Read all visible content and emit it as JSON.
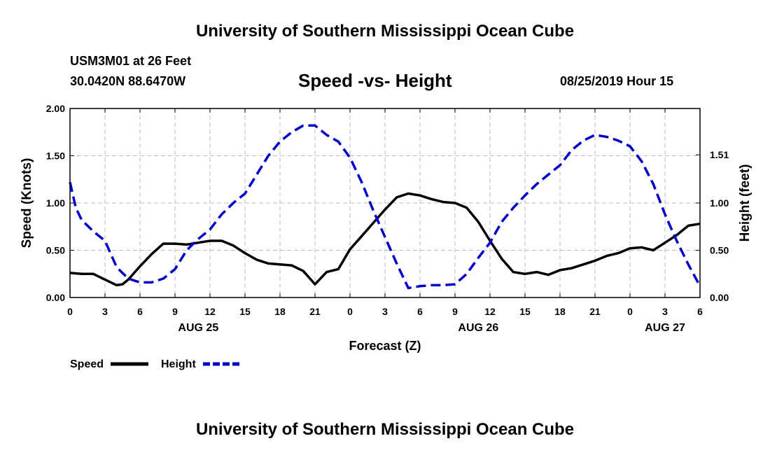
{
  "header": {
    "title": "University of Southern Mississippi Ocean Cube",
    "station": "USM3M01 at 26 Feet",
    "coords": "30.0420N 88.6470W",
    "chart_title": "Speed -vs- Height",
    "timestamp": "08/25/2019 Hour 15"
  },
  "footer": {
    "title": "University of Southern Mississippi Ocean Cube"
  },
  "colors": {
    "speed": "#000000",
    "height": "#0000cc",
    "grid": "#bbbbbb"
  },
  "chart_data": {
    "type": "line",
    "title": "Speed -vs- Height",
    "xlabel": "Forecast (Z)",
    "ylabel": "Speed (Knots)",
    "y2label": "Height (feet)",
    "xlim": [
      0,
      54
    ],
    "ylim": [
      0,
      2.0
    ],
    "y2lim": [
      0,
      2.0
    ],
    "x_ticks": [
      0,
      3,
      6,
      9,
      12,
      15,
      18,
      21,
      24,
      27,
      30,
      33,
      36,
      39,
      42,
      45,
      48,
      51,
      54
    ],
    "x_tick_labels": [
      "0",
      "3",
      "6",
      "9",
      "12",
      "15",
      "18",
      "21",
      "0",
      "3",
      "6",
      "9",
      "12",
      "15",
      "18",
      "21",
      "0",
      "3",
      "6"
    ],
    "date_labels": [
      {
        "x": 11,
        "label": "AUG 25"
      },
      {
        "x": 35,
        "label": "AUG 26"
      },
      {
        "x": 51,
        "label": "AUG 27"
      }
    ],
    "y_ticks": [
      0,
      0.5,
      1.0,
      1.5,
      2.0
    ],
    "y_tick_labels": [
      "0.00",
      "0.50",
      "1.00",
      "1.50",
      "2.00"
    ],
    "y2_ticks": [
      0,
      0.5,
      1.0,
      1.51
    ],
    "y2_tick_labels": [
      "0.00",
      "0.50",
      "1.00",
      "1.51"
    ],
    "grid": true,
    "legend": [
      {
        "name": "Speed",
        "style": "solid"
      },
      {
        "name": "Height",
        "style": "dashed"
      }
    ],
    "series": [
      {
        "name": "Speed",
        "axis": "left",
        "x": [
          0,
          1,
          2,
          3,
          4,
          4.5,
          5,
          6,
          7,
          8,
          9,
          10,
          11,
          12,
          13,
          14,
          15,
          16,
          17,
          18,
          19,
          20,
          21,
          22,
          23,
          24,
          25,
          26,
          27,
          28,
          29,
          30,
          31,
          32,
          33,
          34,
          35,
          36,
          37,
          38,
          39,
          40,
          41,
          42,
          43,
          44,
          45,
          46,
          47,
          48,
          49,
          50,
          51,
          52,
          53,
          54
        ],
        "values": [
          0.26,
          0.25,
          0.25,
          0.19,
          0.13,
          0.14,
          0.19,
          0.33,
          0.46,
          0.57,
          0.57,
          0.56,
          0.58,
          0.6,
          0.6,
          0.55,
          0.47,
          0.4,
          0.36,
          0.35,
          0.34,
          0.28,
          0.14,
          0.27,
          0.3,
          0.51,
          0.65,
          0.79,
          0.93,
          1.06,
          1.1,
          1.08,
          1.04,
          1.01,
          1.0,
          0.95,
          0.8,
          0.6,
          0.41,
          0.27,
          0.25,
          0.27,
          0.24,
          0.29,
          0.31,
          0.35,
          0.39,
          0.44,
          0.47,
          0.52,
          0.53,
          0.5,
          0.58,
          0.66,
          0.76,
          0.78
        ]
      },
      {
        "name": "Height",
        "axis": "right",
        "x": [
          0,
          0.5,
          1,
          2,
          3,
          4,
          5,
          6,
          7,
          8,
          9,
          10,
          11,
          12,
          13,
          14,
          15,
          16,
          17,
          18,
          19,
          20,
          21,
          22,
          23,
          24,
          25,
          26,
          27,
          28,
          29,
          30,
          31,
          32,
          33,
          34,
          35,
          36,
          37,
          38,
          39,
          40,
          41,
          42,
          43,
          44,
          45,
          46,
          47,
          48,
          49,
          50,
          51,
          52,
          53,
          54
        ],
        "values": [
          1.22,
          0.95,
          0.82,
          0.7,
          0.6,
          0.32,
          0.2,
          0.16,
          0.16,
          0.2,
          0.3,
          0.5,
          0.62,
          0.72,
          0.88,
          1.0,
          1.1,
          1.3,
          1.5,
          1.65,
          1.75,
          1.82,
          1.82,
          1.72,
          1.65,
          1.48,
          1.22,
          0.92,
          0.64,
          0.36,
          0.1,
          0.12,
          0.13,
          0.13,
          0.14,
          0.25,
          0.42,
          0.58,
          0.8,
          0.95,
          1.08,
          1.2,
          1.3,
          1.4,
          1.56,
          1.66,
          1.72,
          1.7,
          1.66,
          1.6,
          1.44,
          1.2,
          0.88,
          0.6,
          0.35,
          0.12
        ]
      }
    ]
  }
}
